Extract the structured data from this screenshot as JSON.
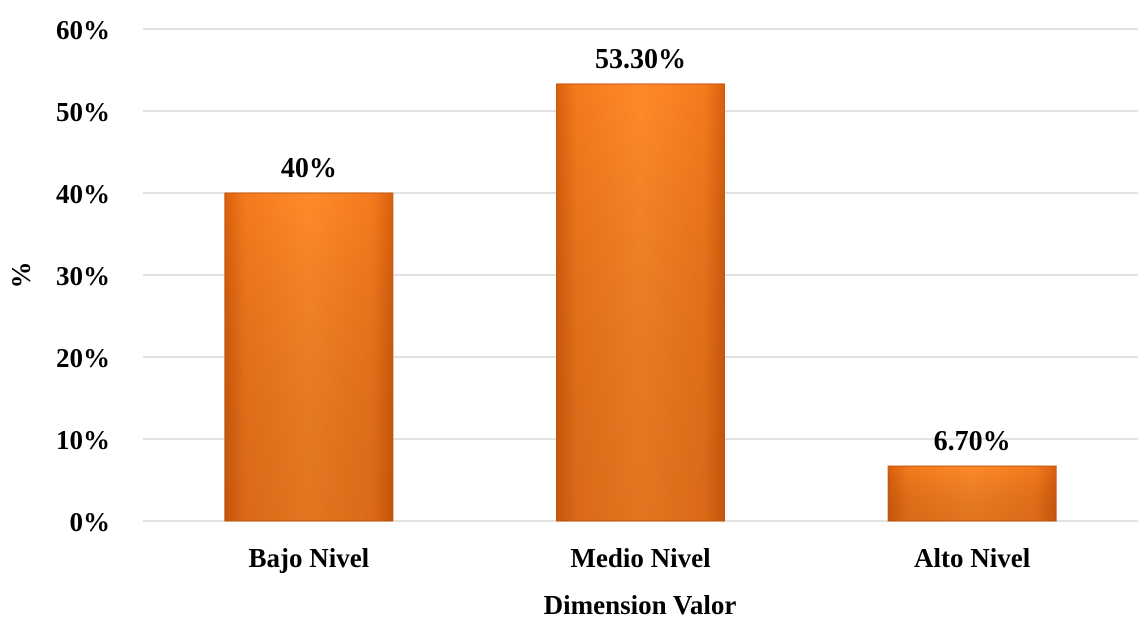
{
  "chart_data": {
    "type": "bar",
    "title": "",
    "xlabel": "Dimension Valor",
    "ylabel": "%",
    "categories": [
      "Bajo Nivel",
      "Medio Nivel",
      "Alto Nivel"
    ],
    "values": [
      40,
      53.3,
      6.7
    ],
    "data_labels": [
      "40%",
      "53.30%",
      "6.70%"
    ],
    "ylim": [
      0,
      60
    ],
    "y_ticks": [
      {
        "value": 0,
        "label": "0%"
      },
      {
        "value": 10,
        "label": "10%"
      },
      {
        "value": 20,
        "label": "20%"
      },
      {
        "value": 30,
        "label": "30%"
      },
      {
        "value": 40,
        "label": "40%"
      },
      {
        "value": 50,
        "label": "50%"
      },
      {
        "value": 60,
        "label": "60%"
      }
    ],
    "grid": true,
    "legend": "none",
    "bar_color": "#f47c20"
  }
}
